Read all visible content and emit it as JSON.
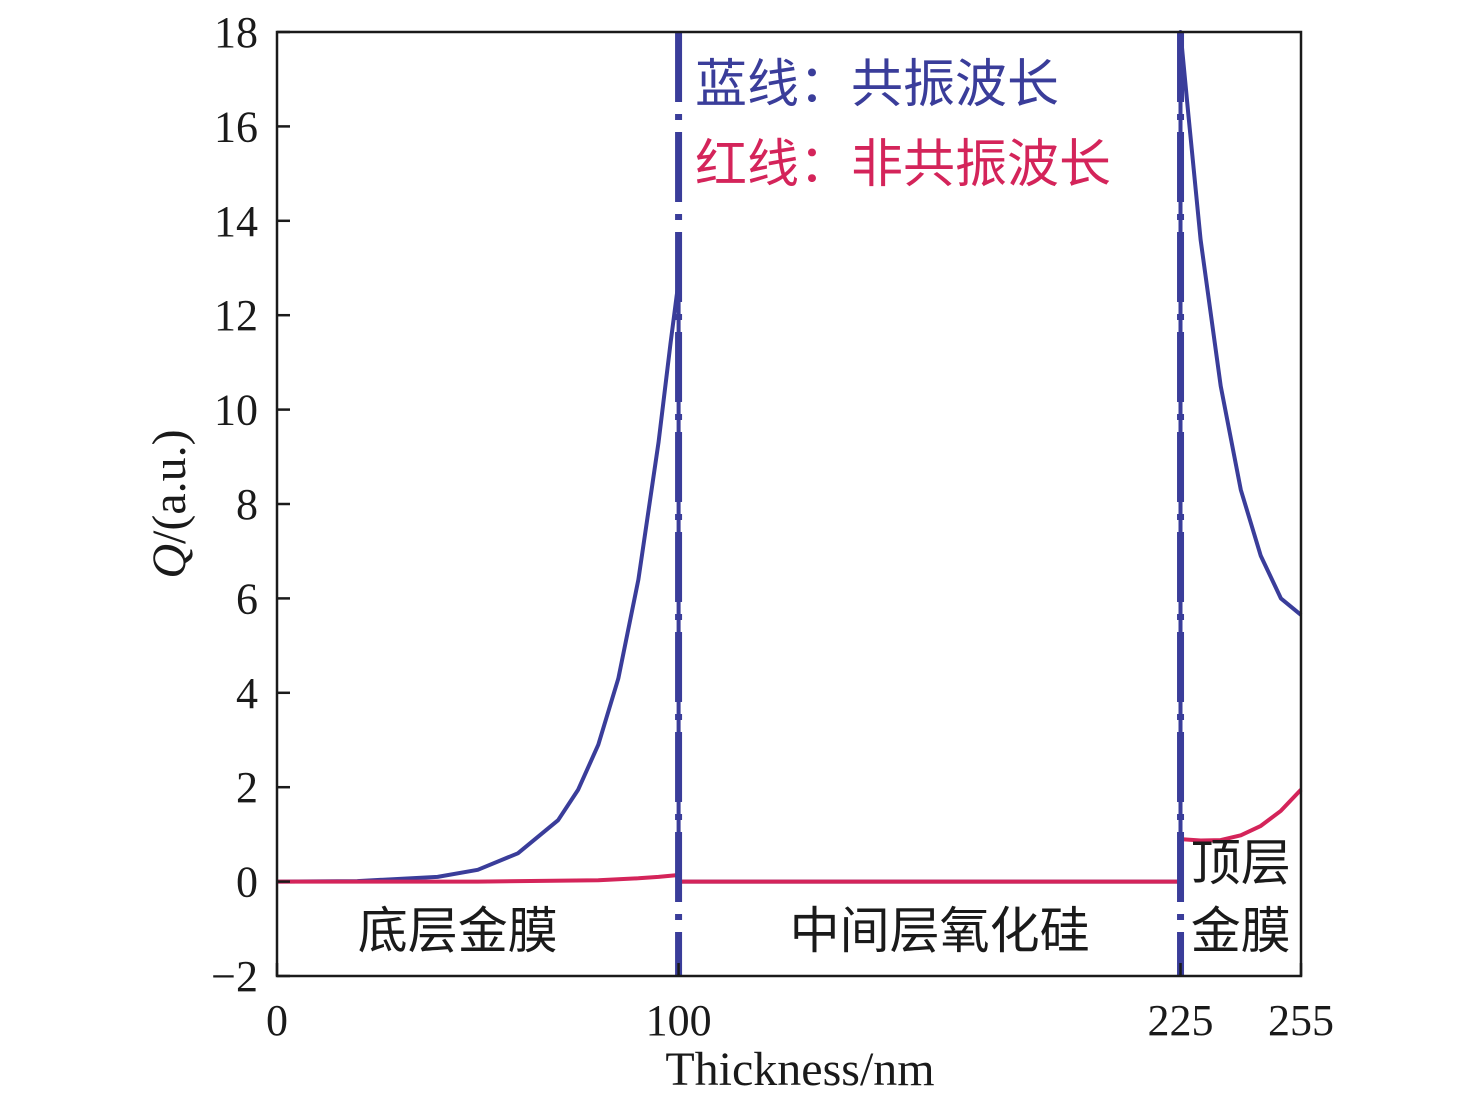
{
  "chart_data": {
    "type": "line",
    "xlabel": "Thickness/nm",
    "ylabel_italic": "Q",
    "ylabel_rest": "/(a.u.)",
    "xlim": [
      0,
      255
    ],
    "ylim": [
      -2,
      18
    ],
    "xticks": [
      0,
      100,
      225,
      255
    ],
    "yticks": [
      -2,
      0,
      2,
      4,
      6,
      8,
      10,
      12,
      14,
      16,
      18
    ],
    "grid": false,
    "legend": {
      "placement": "top-center",
      "entries": [
        {
          "text": "蓝线：共振波长",
          "color": "#3a3d9a"
        },
        {
          "text": "红线：非共振波长",
          "color": "#d4245a"
        }
      ]
    },
    "boundaries": [
      {
        "x": 100,
        "style": "dash-dot"
      },
      {
        "x": 225,
        "style": "dash-dot"
      }
    ],
    "regions": [
      {
        "text": "底层金膜",
        "x": 45
      },
      {
        "text": "中间层氧化硅",
        "x": 165
      },
      {
        "text": "顶层",
        "x": 240,
        "line": 1
      },
      {
        "text": "金膜",
        "x": 240,
        "line": 2
      }
    ],
    "series": [
      {
        "color": "#3a3d9a",
        "x": [
          0,
          20,
          40,
          50,
          60,
          70,
          75,
          80,
          85,
          90,
          95,
          98,
          99.5,
          100,
          100,
          125,
          150,
          175,
          200,
          225,
          225,
          227,
          230,
          235,
          240,
          245,
          250,
          255
        ],
        "y": [
          0,
          0.01,
          0.1,
          0.25,
          0.6,
          1.3,
          1.95,
          2.9,
          4.3,
          6.4,
          9.3,
          11.4,
          12.4,
          12.7,
          0,
          0,
          0,
          0,
          0,
          0,
          18,
          16.2,
          13.6,
          10.5,
          8.3,
          6.9,
          6.0,
          5.65
        ]
      },
      {
        "color": "#d4245a",
        "x": [
          0,
          50,
          80,
          90,
          95,
          100,
          100,
          150,
          200,
          225,
          225,
          230,
          235,
          240,
          245,
          250,
          255
        ],
        "y": [
          0,
          0,
          0.03,
          0.07,
          0.1,
          0.14,
          0,
          0,
          0,
          0,
          0.9,
          0.87,
          0.88,
          0.98,
          1.18,
          1.5,
          1.95
        ]
      }
    ]
  }
}
